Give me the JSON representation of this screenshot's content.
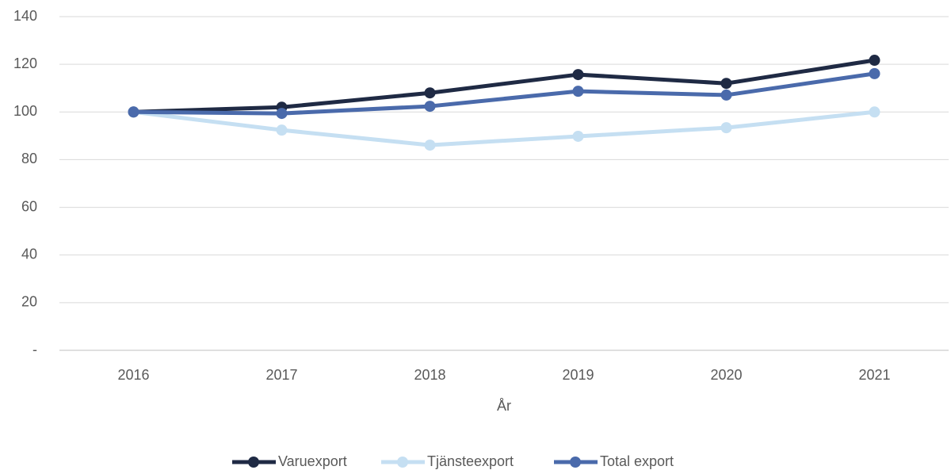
{
  "chart_data": {
    "type": "line",
    "x_label": "År",
    "categories": [
      "2016",
      "2017",
      "2018",
      "2019",
      "2020",
      "2021"
    ],
    "series": [
      {
        "name": "Varuexport",
        "color": "#1f2a44",
        "values": [
          100,
          102,
          108,
          115.7,
          112,
          121.7
        ]
      },
      {
        "name": "Tjänsteexport",
        "color": "#c5dff2",
        "values": [
          100,
          92.4,
          86.1,
          89.8,
          93.4,
          100
        ]
      },
      {
        "name": "Total export",
        "color": "#4a6aab",
        "values": [
          100,
          99.4,
          102.4,
          108.7,
          107.1,
          116.1
        ]
      }
    ],
    "ylim": [
      0,
      140
    ],
    "yticks": [
      {
        "value": 0,
        "label": "-"
      },
      20,
      40,
      60,
      80,
      100,
      120,
      140
    ],
    "grid": true,
    "legend": "bottom"
  }
}
